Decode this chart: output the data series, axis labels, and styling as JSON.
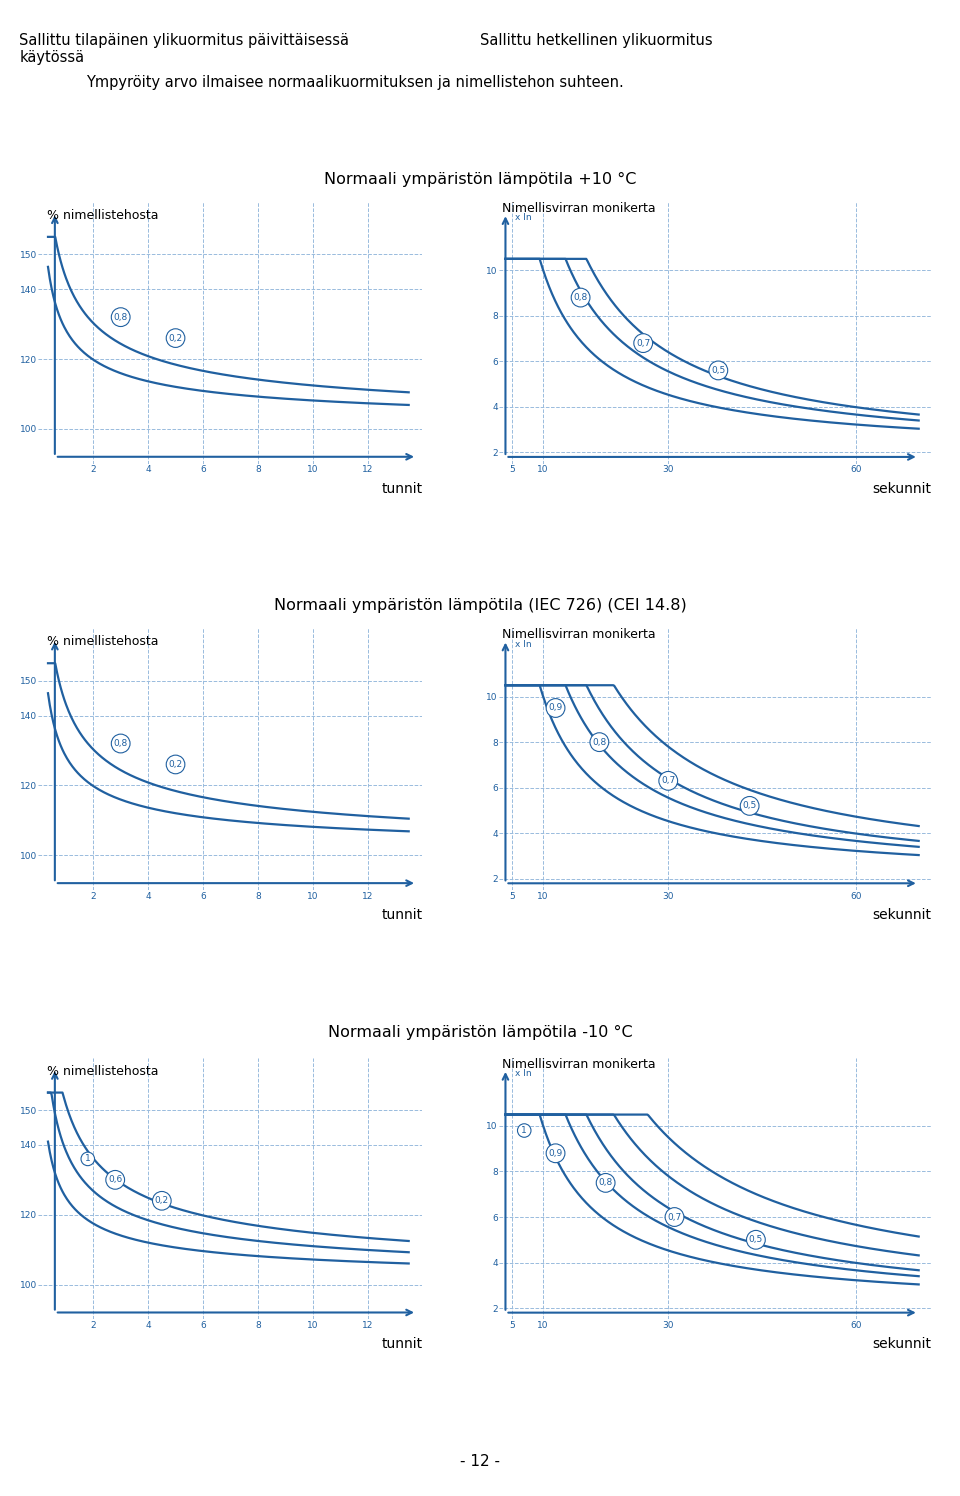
{
  "title_top_left": "Sallittu tilapäinen ylikuormitus päivittäisessä\nkäytössä",
  "title_top_right": "Sallittu hetkellinen ylikuormitus",
  "subtitle": "Ympyröity arvo ilmaisee normaalikuormituksen ja nimellistehon suhteen.",
  "section_titles": [
    "Normaali ympäristön lämpötila +10 °C",
    "Normaali ympäristön lämpötila (IEC 726) (CEI 14.8)",
    "Normaali ympäristön lämpötila -10 °C"
  ],
  "left_ylabel": "% nimellistehosta",
  "right_ylabel": "Nimellisvirran monikerta",
  "left_xlabel": "tunnit",
  "right_xlabel": "sekunnit",
  "blue_dark": "#1a4a80",
  "blue_mid": "#2060a0",
  "blue_light": "#4488cc",
  "grid_color": "#99bbdd",
  "bg_color": "#ffffff",
  "box_color": "#4477aa",
  "page_number": "- 12 -"
}
